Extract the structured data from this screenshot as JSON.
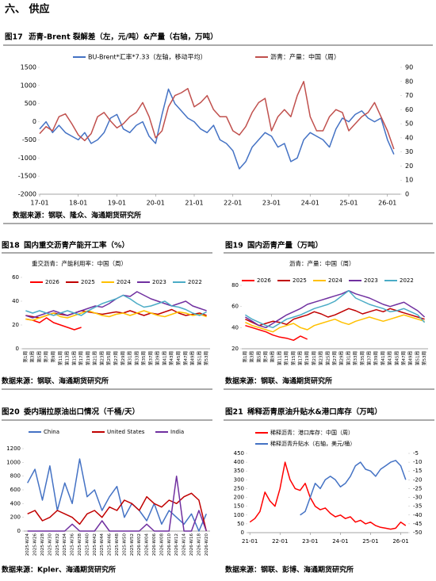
{
  "section_title": "六、 供应",
  "chart_data": [
    {
      "type": "line",
      "figure": "图17",
      "title": "沥青-Brent 裂解差（左，元/吨）&产量（右轴，万吨）",
      "source": "数据来源：钢联、隆众、海通期货研究所",
      "x": [
        "17-01",
        "17-03",
        "17-05",
        "17-07",
        "17-09",
        "17-11",
        "18-01",
        "18-03",
        "18-05",
        "18-07",
        "18-09",
        "18-11",
        "19-01",
        "19-03",
        "19-05",
        "19-07",
        "19-09",
        "19-11",
        "20-01",
        "20-03",
        "20-05",
        "20-07",
        "20-09",
        "20-11",
        "21-01",
        "21-03",
        "21-05",
        "21-07",
        "21-09",
        "21-11",
        "22-01",
        "22-03",
        "22-05",
        "22-07",
        "22-09",
        "22-11",
        "23-01",
        "23-03",
        "23-05",
        "23-07",
        "23-09",
        "23-11",
        "24-01",
        "24-03",
        "24-05",
        "24-07",
        "24-09",
        "24-11",
        "25-01",
        "25-03",
        "25-05",
        "25-07",
        "25-09",
        "25-11",
        "26-01",
        "26-03"
      ],
      "xlim": [
        "17-01",
        "26-05"
      ],
      "xticks": [
        "17-01",
        "18-01",
        "19-01",
        "20-01",
        "21-01",
        "22-01",
        "23-01",
        "24-01",
        "25-01",
        "26-01"
      ],
      "ylim": [
        -2000,
        1500
      ],
      "yticks": [
        -2000,
        -1500,
        -1000,
        -500,
        0,
        500,
        1000,
        1500
      ],
      "y2lim": [
        0,
        90
      ],
      "y2ticks": [
        0,
        10,
        20,
        30,
        40,
        50,
        60,
        70,
        80,
        90
      ],
      "series": [
        {
          "name": "BU-Brent*汇率*7.33（左轴，移动平均）",
          "color": "#4472c4",
          "values": [
            -200,
            0,
            -300,
            -100,
            -300,
            -400,
            -500,
            -300,
            -600,
            -500,
            -300,
            100,
            200,
            -200,
            -300,
            -100,
            0,
            -400,
            -600,
            200,
            900,
            500,
            300,
            100,
            0,
            -200,
            -300,
            -100,
            -500,
            -600,
            -800,
            -1300,
            -1100,
            -700,
            -500,
            -300,
            -400,
            -700,
            -600,
            -1100,
            -1000,
            -500,
            -300,
            -400,
            -500,
            -700,
            -200,
            100,
            0,
            200,
            300,
            100,
            0,
            100,
            -500,
            -900
          ]
        },
        {
          "name": "沥青：产量：中国（周）",
          "color": "#c0504d",
          "axis": "y2",
          "values": [
            43,
            48,
            45,
            55,
            57,
            50,
            42,
            38,
            43,
            55,
            58,
            52,
            47,
            50,
            55,
            58,
            65,
            55,
            40,
            45,
            62,
            70,
            72,
            75,
            62,
            65,
            70,
            60,
            55,
            55,
            45,
            42,
            48,
            58,
            65,
            68,
            45,
            55,
            60,
            55,
            70,
            80,
            55,
            45,
            45,
            55,
            60,
            58,
            45,
            50,
            55,
            58,
            65,
            55,
            45,
            32
          ]
        }
      ]
    },
    {
      "type": "line",
      "figure": "图18",
      "title": "国内重交沥青产能开工率（%）",
      "subtitle": "重交沥青：产能利用率：中国（周）",
      "source": "数据来源：钢联、海通期货研究所",
      "categories": [
        "第1周",
        "第3周",
        "第5周",
        "第7周",
        "第9周",
        "第11周",
        "第13周",
        "第15周",
        "第17周",
        "第19周",
        "第21周",
        "第23周",
        "第25周",
        "第27周",
        "第29周",
        "第31周",
        "第33周",
        "第35周",
        "第37周",
        "第39周",
        "第41周",
        "第43周",
        "第45周",
        "第47周",
        "第49周",
        "第51周",
        "第53周"
      ],
      "ylim": [
        0,
        60
      ],
      "yticks": [
        0,
        20,
        40,
        60
      ],
      "series": [
        {
          "name": "2026",
          "color": "#ff0000",
          "values": [
            25,
            24,
            22,
            26,
            22,
            20,
            18,
            16,
            18,
            null,
            null,
            null,
            null,
            null,
            null,
            null,
            null,
            null,
            null,
            null,
            null,
            null,
            null,
            null,
            null,
            null,
            null
          ]
        },
        {
          "name": "2025",
          "color": "#c00000",
          "values": [
            28,
            27,
            26,
            28,
            30,
            29,
            28,
            30,
            32,
            31,
            30,
            29,
            30,
            31,
            30,
            32,
            30,
            28,
            30,
            29,
            31,
            33,
            30,
            28,
            29,
            30,
            28
          ]
        },
        {
          "name": "2024",
          "color": "#ffc000",
          "values": [
            25,
            24,
            26,
            28,
            30,
            27,
            26,
            28,
            30,
            32,
            30,
            28,
            27,
            29,
            30,
            28,
            30,
            32,
            30,
            28,
            27,
            29,
            31,
            30,
            28,
            29,
            27
          ]
        },
        {
          "name": "2023",
          "color": "#7030a0",
          "values": [
            28,
            26,
            28,
            30,
            32,
            30,
            28,
            30,
            32,
            34,
            36,
            35,
            38,
            42,
            45,
            44,
            48,
            45,
            42,
            40,
            38,
            36,
            38,
            40,
            36,
            34,
            32
          ]
        },
        {
          "name": "2022",
          "color": "#4bacc6",
          "values": [
            32,
            30,
            32,
            30,
            28,
            30,
            32,
            30,
            28,
            32,
            35,
            38,
            40,
            42,
            45,
            42,
            38,
            35,
            36,
            38,
            40,
            36,
            35,
            33,
            30,
            28,
            31
          ]
        }
      ]
    },
    {
      "type": "line",
      "figure": "图19",
      "title": "国内沥青产量（万吨）",
      "subtitle": "沥青：产量：中国（周）",
      "source": "数据来源：钢联、海通期货研究所",
      "categories": [
        "第1周",
        "第3周",
        "第5周",
        "第7周",
        "第9周",
        "第11周",
        "第13周",
        "第15周",
        "第17周",
        "第19周",
        "第21周",
        "第23周",
        "第25周",
        "第27周",
        "第29周",
        "第31周",
        "第33周",
        "第35周",
        "第37周",
        "第39周",
        "第41周",
        "第43周",
        "第45周",
        "第47周",
        "第49周",
        "第51周",
        "第53周"
      ],
      "ylim": [
        20,
        80
      ],
      "yticks": [
        20,
        40,
        60,
        80
      ],
      "series": [
        {
          "name": "2026",
          "color": "#ff0000",
          "values": [
            42,
            40,
            38,
            36,
            33,
            31,
            30,
            28,
            32,
            29,
            null,
            null,
            null,
            null,
            null,
            null,
            null,
            null,
            null,
            null,
            null,
            null,
            null,
            null,
            null,
            null,
            null
          ]
        },
        {
          "name": "2025",
          "color": "#c00000",
          "values": [
            48,
            45,
            42,
            44,
            46,
            45,
            43,
            48,
            50,
            52,
            55,
            53,
            50,
            52,
            55,
            58,
            56,
            53,
            55,
            57,
            55,
            58,
            56,
            54,
            52,
            50,
            48
          ]
        },
        {
          "name": "2024",
          "color": "#ffc000",
          "values": [
            45,
            42,
            40,
            38,
            36,
            40,
            42,
            44,
            40,
            38,
            42,
            44,
            46,
            48,
            45,
            43,
            46,
            48,
            50,
            48,
            46,
            48,
            50,
            52,
            50,
            48,
            46
          ]
        },
        {
          "name": "2023",
          "color": "#7030a0",
          "values": [
            50,
            46,
            42,
            40,
            44,
            48,
            52,
            55,
            58,
            62,
            64,
            66,
            68,
            70,
            72,
            75,
            72,
            70,
            68,
            65,
            62,
            60,
            62,
            64,
            60,
            56,
            50
          ]
        },
        {
          "name": "2022",
          "color": "#4bacc6",
          "values": [
            52,
            48,
            45,
            42,
            40,
            44,
            48,
            50,
            52,
            55,
            58,
            60,
            62,
            65,
            70,
            75,
            68,
            65,
            62,
            60,
            58,
            55,
            56,
            58,
            55,
            52,
            45
          ]
        }
      ]
    },
    {
      "type": "line",
      "figure": "图20",
      "title": "委内瑞拉原油出口情况（千桶/天）",
      "source": "数据来源：Kpler、海通期货研究所",
      "categories": [
        "2025-W24",
        "2025-W26",
        "2025-W28",
        "2025-W30",
        "2025-W32",
        "2025-W34",
        "2025-W36",
        "2025-W38",
        "2025-W40",
        "2025-W42",
        "2025-W44",
        "2025-W46",
        "2025-W48",
        "2025-W50",
        "2025-W52",
        "2026-W02",
        "2026-W04",
        "2026-W06",
        "2026-W08",
        "2026-W10",
        "2026-W12",
        "2026-W14",
        "2026-W16",
        "2026-W18",
        "2026-W20"
      ],
      "ylim": [
        0,
        1200
      ],
      "yticks": [
        0,
        200,
        400,
        600,
        800,
        1000,
        1200
      ],
      "series": [
        {
          "name": "China",
          "color": "#4472c4",
          "values": [
            700,
            900,
            450,
            950,
            300,
            700,
            400,
            1050,
            500,
            600,
            300,
            500,
            650,
            200,
            400,
            300,
            150,
            400,
            100,
            300,
            200,
            100,
            250,
            0,
            250
          ]
        },
        {
          "name": "United States",
          "color": "#c00000",
          "values": [
            250,
            300,
            150,
            200,
            300,
            250,
            200,
            100,
            250,
            300,
            200,
            350,
            300,
            450,
            400,
            300,
            500,
            400,
            350,
            450,
            400,
            500,
            550,
            450,
            0
          ]
        },
        {
          "name": "India",
          "color": "#7030a0",
          "values": [
            0,
            0,
            0,
            0,
            0,
            0,
            100,
            0,
            0,
            0,
            150,
            0,
            0,
            0,
            0,
            0,
            100,
            0,
            0,
            0,
            800,
            0,
            0,
            300,
            0
          ]
        }
      ]
    },
    {
      "type": "line",
      "figure": "图21",
      "title": "稀释沥青原油升贴水&港口库存（万吨）",
      "source": "数据来源：钢联、彭博、海通期货研究所",
      "x": [
        "21-01",
        "21-03",
        "21-05",
        "21-07",
        "21-09",
        "21-11",
        "22-01",
        "22-03",
        "22-05",
        "22-07",
        "22-09",
        "22-11",
        "23-01",
        "23-03",
        "23-05",
        "23-07",
        "23-09",
        "23-11",
        "24-01",
        "24-03",
        "24-05",
        "24-07",
        "24-09",
        "24-11",
        "25-01",
        "25-03",
        "25-05",
        "25-07",
        "25-09",
        "25-11",
        "26-01",
        "26-03"
      ],
      "xlim": [
        "20-12",
        "26-04"
      ],
      "xticks": [
        "21-01",
        "22-01",
        "23-01",
        "24-01",
        "25-01",
        "26-01"
      ],
      "ylim": [
        0,
        450
      ],
      "yticks": [
        0,
        50,
        100,
        150,
        200,
        250,
        300,
        350,
        400,
        450
      ],
      "y2lim": [
        -50,
        -5
      ],
      "y2ticks": [
        -5,
        -10,
        -15,
        -20,
        -25,
        -30,
        -35,
        -40,
        -45,
        -50
      ],
      "series": [
        {
          "name": "稀释沥青：港口库存：中国（周）",
          "color": "#ff0000",
          "values": [
            60,
            80,
            120,
            230,
            180,
            150,
            250,
            400,
            300,
            250,
            240,
            280,
            200,
            150,
            130,
            140,
            110,
            90,
            100,
            80,
            90,
            60,
            70,
            50,
            60,
            40,
            30,
            25,
            20,
            25,
            60,
            40
          ]
        },
        {
          "name": "稀释沥青升贴水（右轴，美元/桶）",
          "color": "#4472c4",
          "axis": "y2",
          "values": [
            null,
            null,
            null,
            null,
            null,
            null,
            null,
            null,
            null,
            null,
            -40,
            -38,
            -30,
            -22,
            -25,
            -20,
            -18,
            -20,
            -24,
            -22,
            -18,
            -12,
            -10,
            -14,
            -15,
            -18,
            -14,
            -12,
            -10,
            -9,
            -12,
            -20
          ]
        }
      ]
    }
  ]
}
